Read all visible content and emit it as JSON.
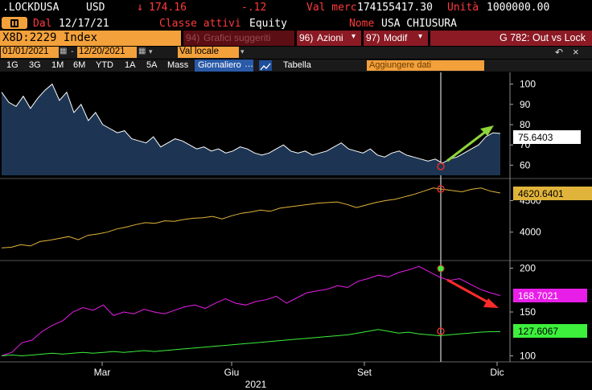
{
  "header": {
    "ticker": ".LOCKDUSA",
    "currency": "USD",
    "arrow": "↓",
    "price": "174.16",
    "change": "-.12",
    "val_merc_label": "Val merc",
    "val_merc": "174155417.30",
    "unita_label": "Unità",
    "unita": "1000000.00",
    "dal_label": "Dal",
    "dal_date": "12/17/21",
    "classe_label": "Classe attivi",
    "classe_value": "Equity",
    "nome_label": "Nome",
    "nome_value": "USA CHIUSURA"
  },
  "toolbar1": {
    "security": "X8D:2229 Index",
    "grafici_num": "94)",
    "grafici": "Grafici suggeriti",
    "azioni_num": "96)",
    "azioni": "Azioni",
    "modif_num": "97)",
    "modif": "Modif",
    "title": "G 782: Out vs Lock"
  },
  "toolbar2": {
    "start_date": "01/01/2021",
    "dash": "-",
    "end_date": "12/20/2021",
    "val_locale": "Val locale"
  },
  "toolbar3": {
    "periods": [
      "1G",
      "3G",
      "1M",
      "6M",
      "YTD",
      "1A",
      "5A",
      "Mass"
    ],
    "active_period": "Giornaliero",
    "tabella": "Tabella",
    "aggiungere": "Aggiungere dati"
  },
  "colors": {
    "panel1_line": "#ffffff",
    "panel1_fill": "#1d3553",
    "panel2_line": "#e0b43a",
    "panel3_magenta": "#e81ee8",
    "panel3_green": "#3cf03c",
    "arrow_up": "#8ed43a",
    "arrow_down": "#ff2a2a",
    "orange": "#f3a13b"
  },
  "chart_data": [
    {
      "type": "area",
      "panel": "top",
      "yticks": [
        "100",
        "90",
        "80",
        "70",
        "60"
      ],
      "ylim": [
        55,
        105
      ],
      "last_value": "75.6403",
      "values": [
        96,
        91,
        89,
        94,
        88,
        93,
        97,
        100,
        92,
        96,
        86,
        90,
        82,
        86,
        80,
        78,
        76,
        77,
        73,
        72,
        71,
        74,
        69,
        71,
        73,
        72,
        70,
        68,
        69,
        67,
        68,
        66,
        67,
        69,
        68,
        66,
        65,
        66,
        68,
        70,
        67,
        66,
        67,
        65,
        66,
        67,
        69,
        71,
        68,
        67,
        66,
        68,
        65,
        64,
        66,
        67,
        65,
        64,
        63,
        62,
        63,
        61,
        63,
        64,
        66,
        68,
        70,
        74,
        76,
        75.64
      ]
    },
    {
      "type": "line",
      "panel": "middle",
      "yticks": [
        "4500",
        "4000"
      ],
      "ylim": [
        3600,
        4800
      ],
      "last_value": "4620.6401",
      "values": [
        3750,
        3760,
        3800,
        3780,
        3850,
        3870,
        3900,
        3930,
        3880,
        3950,
        3970,
        4000,
        4050,
        4080,
        4120,
        4150,
        4140,
        4180,
        4170,
        4200,
        4220,
        4230,
        4250,
        4210,
        4260,
        4300,
        4320,
        4350,
        4330,
        4380,
        4400,
        4420,
        4440,
        4460,
        4470,
        4480,
        4440,
        4390,
        4430,
        4470,
        4500,
        4520,
        4560,
        4600,
        4650,
        4700,
        4680,
        4660,
        4640,
        4680,
        4700,
        4650,
        4620.64
      ]
    },
    {
      "type": "line",
      "panel": "bottom",
      "yticks": [
        "200",
        "150",
        "100"
      ],
      "ylim": [
        95,
        205
      ],
      "series": [
        {
          "values": [
            100,
            104,
            115,
            118,
            128,
            135,
            140,
            150,
            155,
            152,
            158,
            146,
            150,
            148,
            153,
            150,
            148,
            152,
            156,
            158,
            154,
            160,
            165,
            160,
            158,
            162,
            164,
            168,
            160,
            166,
            172,
            174,
            176,
            180,
            178,
            185,
            188,
            192,
            190,
            195,
            198,
            202,
            196,
            190,
            186,
            188,
            182,
            176,
            172,
            168.7
          ]
        },
        {
          "values": [
            100,
            101,
            100,
            101,
            102,
            103,
            102,
            103,
            104,
            103,
            104,
            105,
            104,
            105,
            106,
            105,
            106,
            107,
            108,
            109,
            110,
            111,
            112,
            113,
            114,
            115,
            116,
            117,
            118,
            119,
            120,
            121,
            122,
            123,
            124,
            126,
            128,
            130,
            128,
            126,
            127,
            125,
            124,
            123,
            124,
            125,
            126,
            127,
            127.5,
            127.61
          ]
        }
      ],
      "last_values": [
        "168.7021",
        "127.6067"
      ]
    }
  ],
  "xaxis": {
    "months": [
      "Mar",
      "Giu",
      "Set",
      "Dic"
    ],
    "year": "2021"
  }
}
